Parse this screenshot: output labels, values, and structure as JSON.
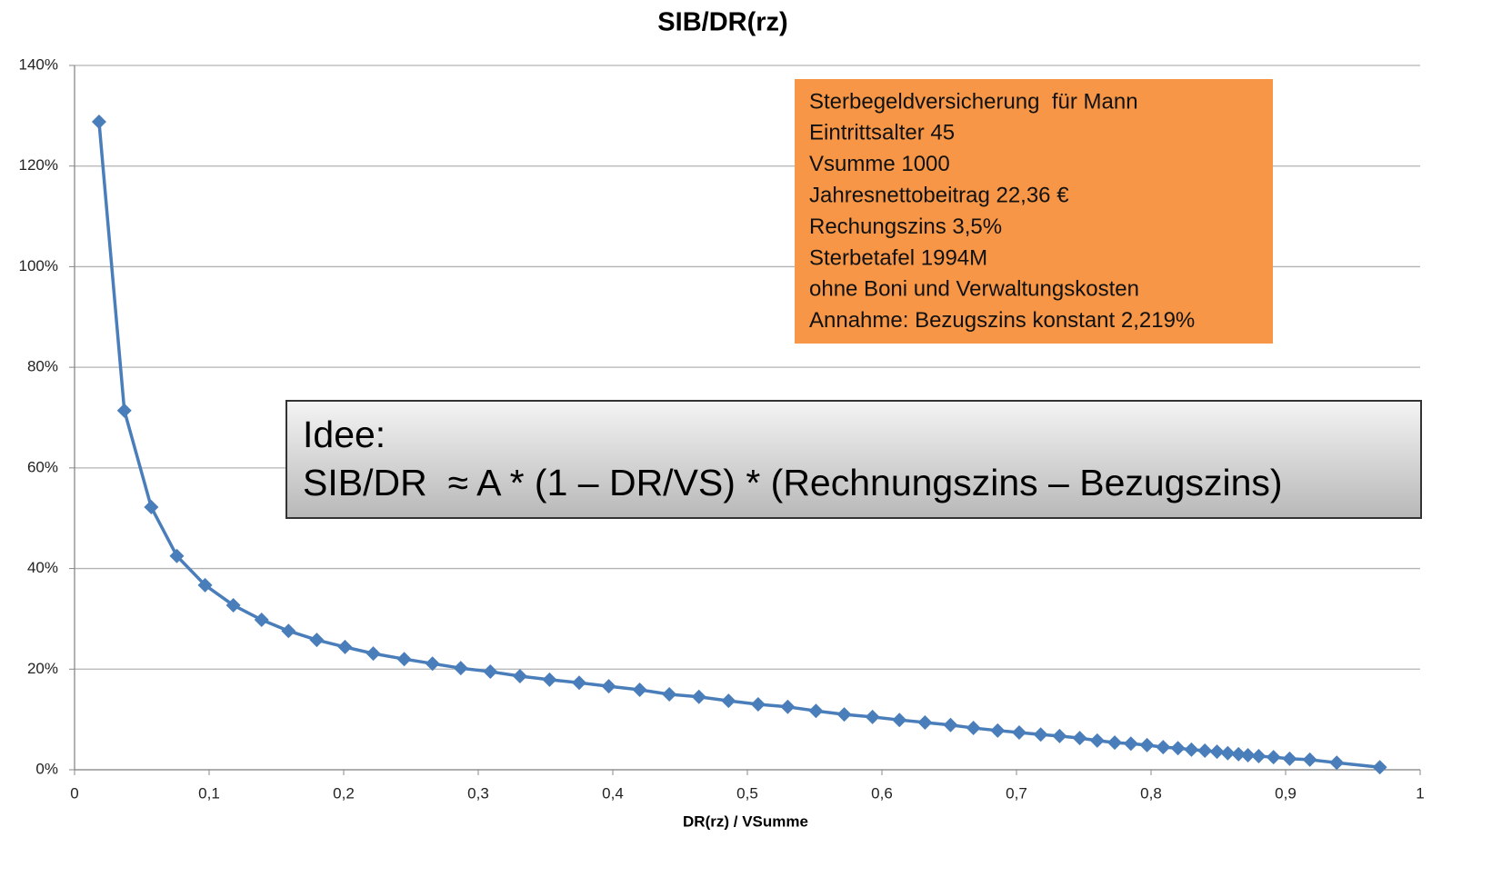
{
  "chart_data": {
    "type": "line",
    "title": "SIB/DR(rz)",
    "x_label": "DR(rz) / VSumme",
    "color": "#4a7ebb",
    "marker": "diamond",
    "grid": true,
    "x": [
      0.0182,
      0.037,
      0.057,
      0.076,
      0.097,
      0.118,
      0.139,
      0.159,
      0.18,
      0.201,
      0.222,
      0.245,
      0.266,
      0.287,
      0.309,
      0.331,
      0.353,
      0.375,
      0.397,
      0.42,
      0.442,
      0.464,
      0.486,
      0.508,
      0.53,
      0.551,
      0.572,
      0.593,
      0.613,
      0.632,
      0.651,
      0.668,
      0.686,
      0.702,
      0.718,
      0.732,
      0.747,
      0.76,
      0.773,
      0.785,
      0.797,
      0.809,
      0.82,
      0.83,
      0.84,
      0.849,
      0.857,
      0.865,
      0.872,
      0.88,
      0.891,
      0.903,
      0.918,
      0.938,
      0.97
    ],
    "values": [
      128.8,
      71.4,
      52.2,
      42.5,
      36.7,
      32.7,
      29.8,
      27.6,
      25.8,
      24.4,
      23.1,
      22.0,
      21.1,
      20.2,
      19.5,
      18.6,
      17.9,
      17.3,
      16.6,
      15.9,
      15.0,
      14.5,
      13.7,
      13.0,
      12.5,
      11.7,
      11.0,
      10.5,
      9.9,
      9.4,
      8.9,
      8.3,
      7.8,
      7.4,
      7.0,
      6.7,
      6.3,
      5.8,
      5.4,
      5.2,
      4.9,
      4.5,
      4.3,
      4.0,
      3.8,
      3.6,
      3.3,
      3.1,
      2.9,
      2.7,
      2.5,
      2.2,
      2.0,
      1.4,
      0.5
    ],
    "xlim": [
      0,
      1
    ],
    "xticks": [
      0,
      {
        "value": 0.1,
        "label": "0,1"
      },
      {
        "value": 0.2,
        "label": "0,2"
      },
      {
        "value": 0.3,
        "label": "0,3"
      },
      {
        "value": 0.4,
        "label": "0,4"
      },
      {
        "value": 0.5,
        "label": "0,5"
      },
      {
        "value": 0.6,
        "label": "0,6"
      },
      {
        "value": 0.7,
        "label": "0,7"
      },
      {
        "value": 0.8,
        "label": "0,8"
      },
      {
        "value": 0.9,
        "label": "0,9"
      },
      1
    ],
    "ylim": [
      0,
      140
    ],
    "yticks": [
      {
        "value": 0,
        "label": "0%"
      },
      {
        "value": 20,
        "label": "20%"
      },
      {
        "value": 40,
        "label": "40%"
      },
      {
        "value": 60,
        "label": "60%"
      },
      {
        "value": 80,
        "label": "80%"
      },
      {
        "value": 100,
        "label": "100%"
      },
      {
        "value": 120,
        "label": "120%"
      },
      {
        "value": 140,
        "label": "140%"
      }
    ],
    "annotations": [
      {
        "lines": [
          "Sterbegeldversicherung  für Mann",
          "Eintrittsalter 45",
          "Vsumme 1000",
          "Jahresnettobeitrag 22,36 €",
          "Rechungszins 3,5%",
          "Sterbetafel 1994M",
          "ohne Boni und Verwaltungskosten",
          "Annahme: Bezugszins konstant 2,219%"
        ]
      },
      {
        "lines": [
          "Idee:",
          "SIB/DR  ≈ A * (1 – DR/VS) * (Rechnungszins – Bezugszins)"
        ]
      }
    ]
  }
}
